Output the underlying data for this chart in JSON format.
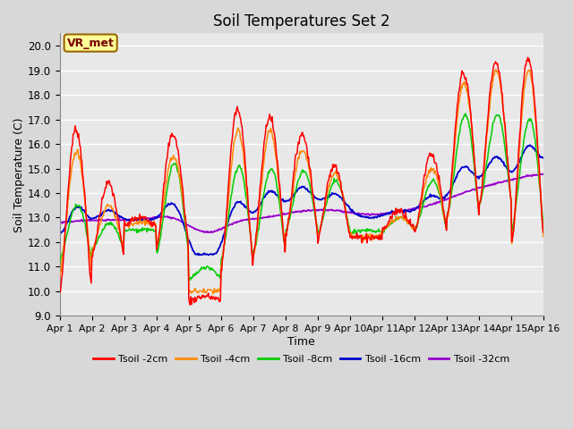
{
  "title": "Soil Temperatures Set 2",
  "xlabel": "Time",
  "ylabel": "Soil Temperature (C)",
  "ylim": [
    9.0,
    20.5
  ],
  "yticks": [
    9.0,
    10.0,
    11.0,
    12.0,
    13.0,
    14.0,
    15.0,
    16.0,
    17.0,
    18.0,
    19.0,
    20.0
  ],
  "x_labels": [
    "Apr 1",
    "Apr 2",
    "Apr 3",
    "Apr 4",
    "Apr 5",
    "Apr 6",
    "Apr 7",
    "Apr 8",
    "Apr 9",
    "Apr 10",
    "Apr 11",
    "Apr 12",
    "Apr 13",
    "Apr 14",
    "Apr 15",
    "Apr 16"
  ],
  "colors": {
    "Tsoil -2cm": "#ff0000",
    "Tsoil -4cm": "#ff8800",
    "Tsoil -8cm": "#00cc00",
    "Tsoil -16cm": "#0000cc",
    "Tsoil -32cm": "#9900cc"
  },
  "bg_color": "#e8e8e8",
  "plot_bg": "#e8e8e8",
  "grid_color": "#ffffff",
  "annotation_text": "VR_met",
  "annotation_bg": "#ffff99",
  "annotation_border": "#996600",
  "daily_peak_heights_2cm": [
    16.6,
    14.4,
    13.0,
    16.4,
    9.8,
    17.4,
    17.1,
    16.4,
    15.1,
    12.2,
    13.3,
    15.6,
    18.9,
    19.3,
    19.5
  ],
  "daily_peak_heights_4cm": [
    15.7,
    13.5,
    12.8,
    15.5,
    10.0,
    16.5,
    16.5,
    15.8,
    14.8,
    12.2,
    13.0,
    15.0,
    18.5,
    19.0,
    19.0
  ],
  "daily_peak_heights_8cm": [
    13.5,
    12.8,
    12.5,
    15.2,
    11.0,
    15.1,
    15.0,
    14.9,
    14.5,
    12.5,
    13.0,
    14.5,
    17.2,
    17.2,
    17.0
  ],
  "daily_valley_2cm": [
    9.9,
    11.4,
    12.7,
    11.8,
    9.6,
    10.9,
    11.5,
    12.3,
    12.2,
    12.2,
    12.5,
    12.4,
    13.0,
    13.5,
    12.0
  ],
  "daily_valley_4cm": [
    10.7,
    11.7,
    12.7,
    11.9,
    10.0,
    11.0,
    11.5,
    12.4,
    12.3,
    12.3,
    12.5,
    12.5,
    13.0,
    13.5,
    12.0
  ],
  "daily_valley_8cm": [
    11.3,
    11.7,
    12.5,
    11.5,
    10.5,
    11.3,
    11.6,
    12.5,
    12.4,
    12.4,
    12.5,
    12.5,
    13.1,
    13.5,
    12.5
  ],
  "baseline_16cm": [
    12.0,
    13.2,
    13.0,
    12.8,
    12.1,
    12.2,
    13.1,
    13.6,
    13.8,
    13.5,
    13.4,
    13.3,
    13.8,
    14.2,
    15.5
  ],
  "baseline_32cm": [
    12.5,
    12.8,
    12.9,
    12.9,
    12.8,
    12.5,
    12.5,
    13.0,
    13.2,
    13.3,
    13.3,
    13.3,
    13.5,
    14.0,
    14.5
  ]
}
